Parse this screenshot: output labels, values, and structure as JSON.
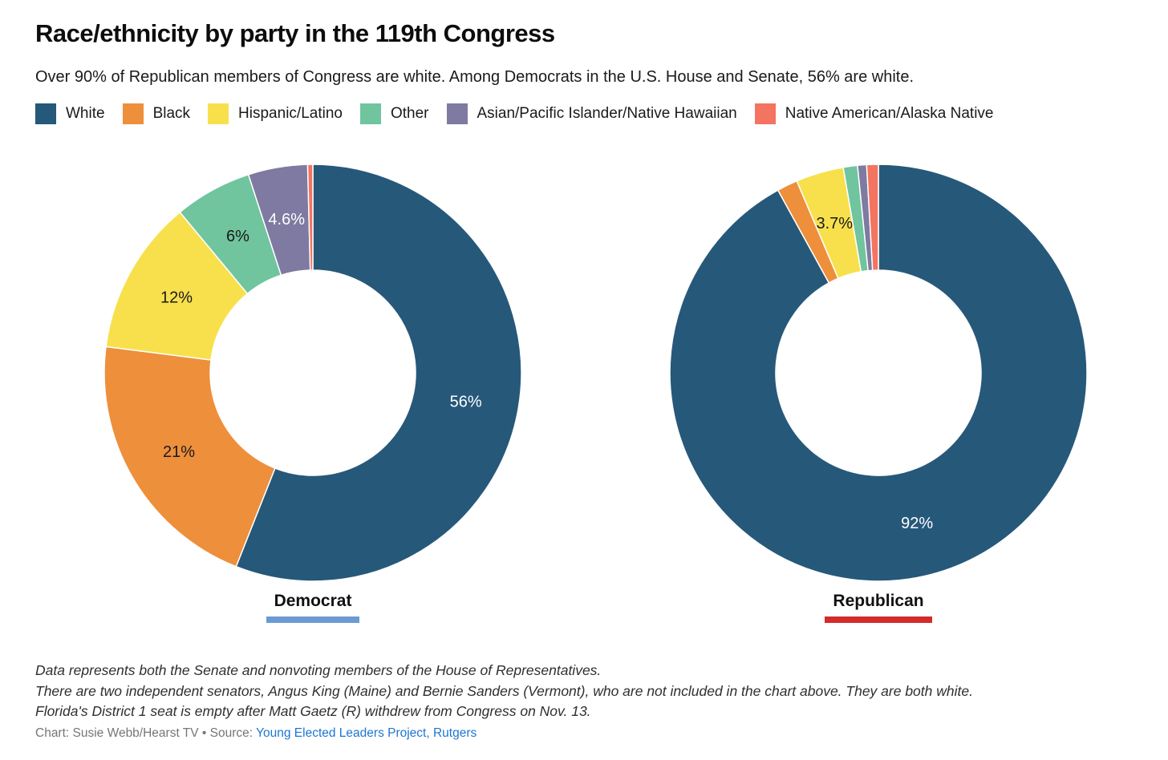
{
  "header": {
    "title": "Race/ethnicity by party in the 119th Congress",
    "subtitle": "Over 90% of Republican members of Congress are white. Among Democrats in the U.S. House and Senate, 56% are white."
  },
  "legend": [
    {
      "label": "White",
      "color": "#26587A"
    },
    {
      "label": "Black",
      "color": "#EE8F3B"
    },
    {
      "label": "Hispanic/Latino",
      "color": "#F8E04D"
    },
    {
      "label": "Other",
      "color": "#70C49E"
    },
    {
      "label": "Asian/Pacific Islander/Native Hawaiian",
      "color": "#7E7AA1"
    },
    {
      "label": "Native American/Alaska Native",
      "color": "#F37460"
    }
  ],
  "chart_data": {
    "type": "pie",
    "subtype": "donut",
    "categories": [
      "White",
      "Black",
      "Hispanic/Latino",
      "Other",
      "Asian/Pacific Islander/Native Hawaiian",
      "Native American/Alaska Native"
    ],
    "colors": [
      "#26587A",
      "#EE8F3B",
      "#F8E04D",
      "#70C49E",
      "#7E7AA1",
      "#F37460"
    ],
    "series": [
      {
        "name": "Democrat",
        "accent_color": "#6B9BD2",
        "values": [
          56,
          21,
          12,
          6,
          4.6,
          0.4
        ],
        "labels": [
          "56%",
          "21%",
          "12%",
          "6%",
          "4.6%",
          ""
        ],
        "label_colors": [
          "#FFFFFF",
          "#1A1A1A",
          "#1A1A1A",
          "#1A1A1A",
          "#FFFFFF",
          ""
        ]
      },
      {
        "name": "Republican",
        "accent_color": "#D42A2A",
        "values": [
          92,
          1.6,
          3.7,
          1.1,
          0.7,
          0.9
        ],
        "labels": [
          "92%",
          "",
          "3.7%",
          "",
          "",
          ""
        ],
        "label_colors": [
          "#FFFFFF",
          "",
          "#1A1A1A",
          "",
          "",
          ""
        ]
      }
    ]
  },
  "footer": {
    "notes": [
      "Data represents both the Senate and nonvoting members of the House of Representatives.",
      "There are two independent senators, Angus King (Maine) and Bernie Sanders (Vermont), who are not included in the chart above. They are both white.",
      "Florida's District 1 seat is empty after Matt Gaetz (R) withdrew from Congress on Nov. 13."
    ],
    "credit_prefix": "Chart: Susie Webb/Hearst TV • Source:",
    "source_link": "Young Elected Leaders Project, Rutgers"
  }
}
